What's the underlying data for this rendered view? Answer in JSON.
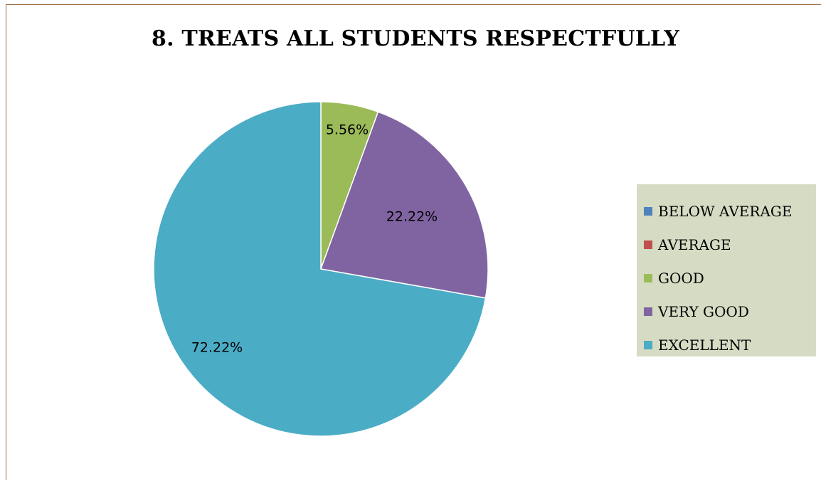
{
  "chart_data": {
    "type": "pie",
    "title": "8. TREATS ALL STUDENTS RESPECTFULLY",
    "categories": [
      "BELOW AVERAGE",
      "AVERAGE",
      "GOOD",
      "VERY GOOD",
      "EXCELLENT"
    ],
    "values": [
      0,
      0,
      5.56,
      22.22,
      72.22
    ],
    "data_labels": [
      "",
      "",
      "5.56%",
      "22.22%",
      "72.22%"
    ],
    "colors": [
      "#4f81bd",
      "#c0504d",
      "#9bbb59",
      "#8064a2",
      "#4bacc6"
    ],
    "start_angle": "12 o'clock",
    "direction": "clockwise",
    "legend_position": "right"
  }
}
